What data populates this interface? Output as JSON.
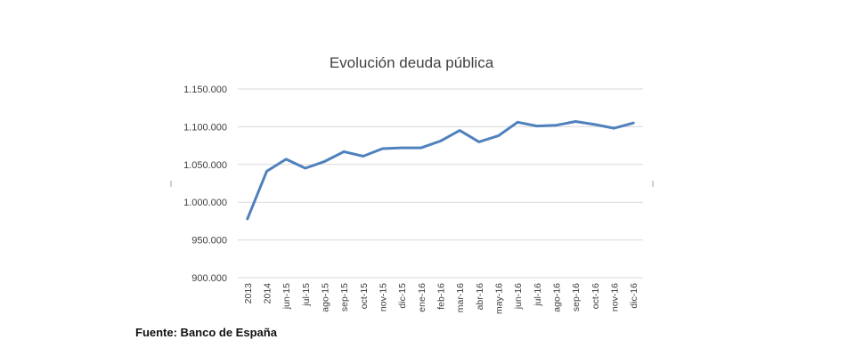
{
  "chart_data": {
    "type": "line",
    "title": "Evolución deuda pública",
    "xlabel": "",
    "ylabel": "",
    "categories": [
      "2013",
      "2014",
      "jun-15",
      "jul-15",
      "ago-15",
      "sep-15",
      "oct-15",
      "nov-15",
      "dic-15",
      "ene-16",
      "feb-16",
      "mar-16",
      "abr-16",
      "may-16",
      "jun-16",
      "jul-16",
      "ago-16",
      "sep-16",
      "oct-16",
      "nov-16",
      "dic-16"
    ],
    "series": [
      {
        "values": [
          978000,
          1041000,
          1057000,
          1045000,
          1054000,
          1067000,
          1061000,
          1071000,
          1072000,
          1072000,
          1081000,
          1095000,
          1080000,
          1088000,
          1106000,
          1101000,
          1102000,
          1107000,
          1103000,
          1098000,
          1105000
        ]
      }
    ],
    "ylim": [
      900000,
      1150000
    ],
    "yticks": [
      900000,
      950000,
      1000000,
      1050000,
      1100000,
      1150000
    ],
    "ytick_labels": [
      "900.000",
      "950.000",
      "1.000.000",
      "1.050.000",
      "1.100.000",
      "1.150.000"
    ],
    "grid": true,
    "legend": "none",
    "line_color": "#4f81bd"
  },
  "source_note": "Fuente: Banco de España"
}
